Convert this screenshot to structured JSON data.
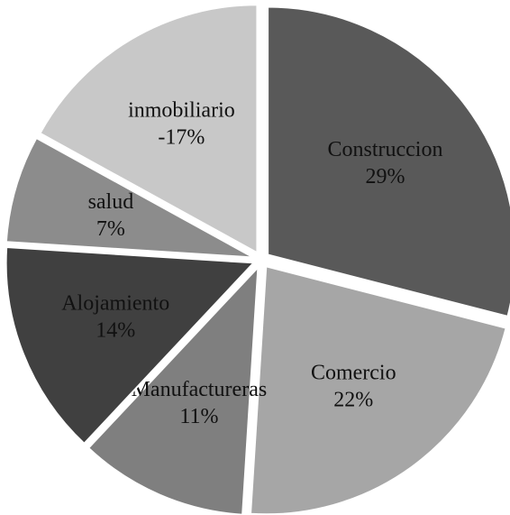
{
  "chart_data": {
    "type": "pie",
    "categories": [
      "Construccion",
      "Comercio",
      "Manufactureras",
      "Alojamiento",
      "salud",
      "inmobiliario"
    ],
    "values": [
      29,
      22,
      11,
      14,
      7,
      -17
    ],
    "value_labels": [
      "29%",
      "22%",
      "11%",
      "14%",
      "7%",
      "-17%"
    ],
    "colors": [
      "#595959",
      "#a6a6a6",
      "#7f7f7f",
      "#404040",
      "#8c8c8c",
      "#c8c8c8"
    ],
    "exploded": true
  }
}
